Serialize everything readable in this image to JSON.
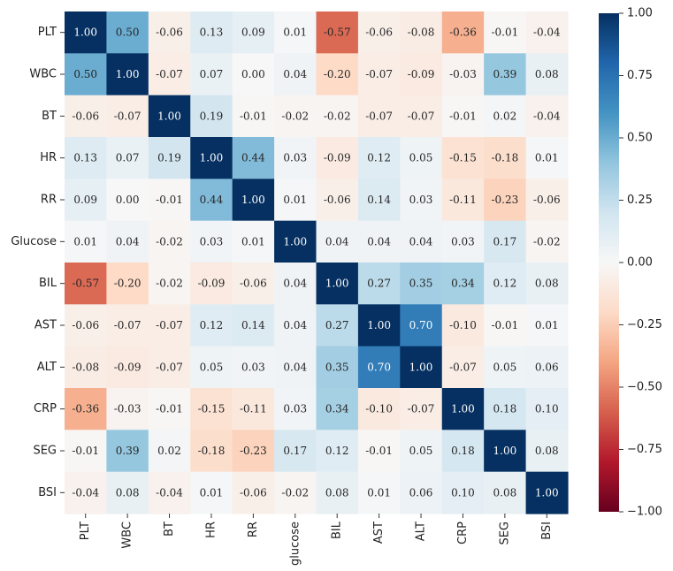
{
  "chart_data": {
    "type": "heatmap",
    "title": "",
    "row_labels": [
      "PLT",
      "WBC",
      "BT",
      "HR",
      "RR",
      "Glucose",
      "BIL",
      "AST",
      "ALT",
      "CRP",
      "SEG",
      "BSI"
    ],
    "col_labels": [
      "PLT",
      "WBC",
      "BT",
      "HR",
      "RR",
      "glucose",
      "BIL",
      "AST",
      "ALT",
      "CRP",
      "SEG",
      "BSI"
    ],
    "values": [
      [
        1.0,
        0.5,
        -0.06,
        0.13,
        0.09,
        0.01,
        -0.57,
        -0.06,
        -0.08,
        -0.36,
        -0.01,
        -0.04
      ],
      [
        0.5,
        1.0,
        -0.07,
        0.07,
        0.0,
        0.04,
        -0.2,
        -0.07,
        -0.09,
        -0.03,
        0.39,
        0.08
      ],
      [
        -0.06,
        -0.07,
        1.0,
        0.19,
        -0.01,
        -0.02,
        -0.02,
        -0.07,
        -0.07,
        -0.01,
        0.02,
        -0.04
      ],
      [
        0.13,
        0.07,
        0.19,
        1.0,
        0.44,
        0.03,
        -0.09,
        0.12,
        0.05,
        -0.15,
        -0.18,
        0.01
      ],
      [
        0.09,
        0.0,
        -0.01,
        0.44,
        1.0,
        0.01,
        -0.06,
        0.14,
        0.03,
        -0.11,
        -0.23,
        -0.06
      ],
      [
        0.01,
        0.04,
        -0.02,
        0.03,
        0.01,
        1.0,
        0.04,
        0.04,
        0.04,
        0.03,
        0.17,
        -0.02
      ],
      [
        -0.57,
        -0.2,
        -0.02,
        -0.09,
        -0.06,
        0.04,
        1.0,
        0.27,
        0.35,
        0.34,
        0.12,
        0.08
      ],
      [
        -0.06,
        -0.07,
        -0.07,
        0.12,
        0.14,
        0.04,
        0.27,
        1.0,
        0.7,
        -0.1,
        -0.01,
        0.01
      ],
      [
        -0.08,
        -0.09,
        -0.07,
        0.05,
        0.03,
        0.04,
        0.35,
        0.7,
        1.0,
        -0.07,
        0.05,
        0.06
      ],
      [
        -0.36,
        -0.03,
        -0.01,
        -0.15,
        -0.11,
        0.03,
        0.34,
        -0.1,
        -0.07,
        1.0,
        0.18,
        0.1
      ],
      [
        -0.01,
        0.39,
        0.02,
        -0.18,
        -0.23,
        0.17,
        0.12,
        -0.01,
        0.05,
        0.18,
        1.0,
        0.08
      ],
      [
        -0.04,
        0.08,
        -0.04,
        0.01,
        -0.06,
        -0.02,
        0.08,
        0.01,
        0.06,
        0.1,
        0.08,
        1.0
      ]
    ],
    "value_format": "2-decimal",
    "colorbar": {
      "range": [
        -1.0,
        1.0
      ],
      "ticks": [
        1.0,
        0.75,
        0.5,
        0.25,
        0.0,
        -0.25,
        -0.5,
        -0.75,
        -1.0
      ],
      "tick_labels": [
        "1.00",
        "0.75",
        "0.50",
        "0.25",
        "0.00",
        "−0.25",
        "−0.50",
        "−0.75",
        "−1.00"
      ],
      "colormap": "RdBu",
      "stops": [
        "#67001f",
        "#b2182b",
        "#d6604d",
        "#f4a582",
        "#fddbc7",
        "#f7f7f7",
        "#d1e5f0",
        "#92c5de",
        "#4393c3",
        "#2166ac",
        "#053061"
      ]
    }
  }
}
